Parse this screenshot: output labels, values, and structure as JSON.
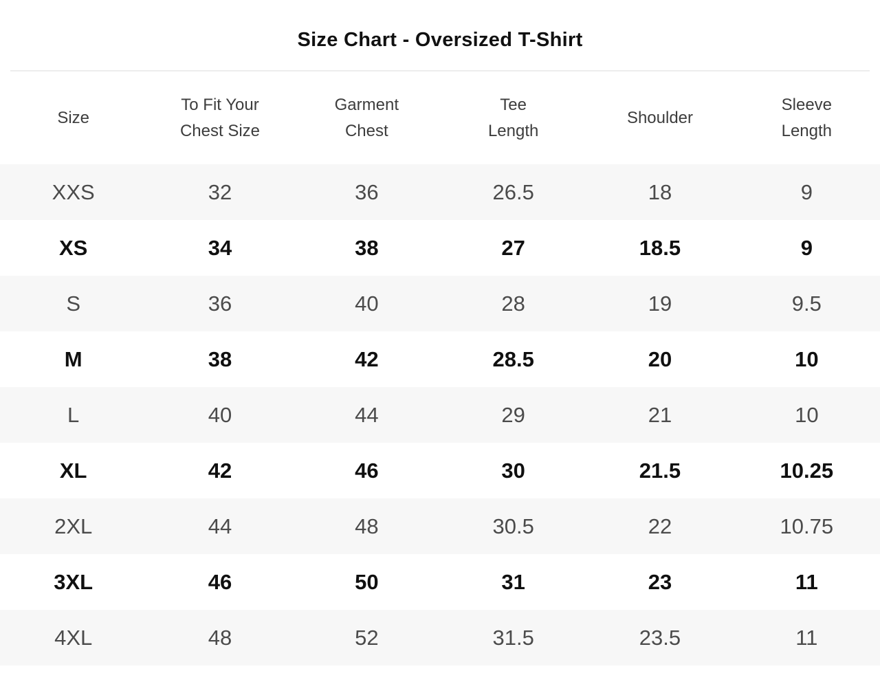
{
  "title": "Size Chart - Oversized T-Shirt",
  "table": {
    "columns": [
      "Size",
      "To Fit Your\nChest Size",
      "Garment\nChest",
      "Tee\nLength",
      "Shoulder",
      "Sleeve\nLength"
    ],
    "rows": [
      [
        "XXS",
        "32",
        "36",
        "26.5",
        "18",
        "9"
      ],
      [
        "XS",
        "34",
        "38",
        "27",
        "18.5",
        "9"
      ],
      [
        "S",
        "36",
        "40",
        "28",
        "19",
        "9.5"
      ],
      [
        "M",
        "38",
        "42",
        "28.5",
        "20",
        "10"
      ],
      [
        "L",
        "40",
        "44",
        "29",
        "21",
        "10"
      ],
      [
        "XL",
        "42",
        "46",
        "30",
        "21.5",
        "10.25"
      ],
      [
        "2XL",
        "44",
        "48",
        "30.5",
        "22",
        "10.75"
      ],
      [
        "3XL",
        "46",
        "50",
        "31",
        "23",
        "11"
      ],
      [
        "4XL",
        "48",
        "52",
        "31.5",
        "23.5",
        "11"
      ]
    ]
  },
  "colors": {
    "stripe_row_bg": "#f7f7f7",
    "plain_row_bg": "#ffffff",
    "divider": "#ededed",
    "title_text": "#111111",
    "header_text": "#3d3d3d",
    "stripe_row_text": "#4b4b4b",
    "plain_row_text": "#101010"
  }
}
